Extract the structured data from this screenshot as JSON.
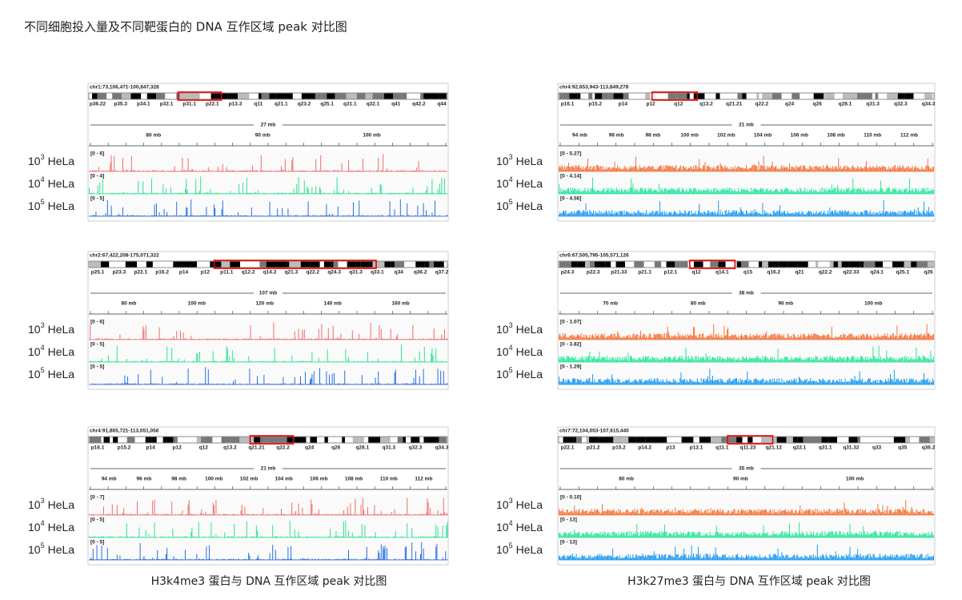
{
  "title": "不同细胞投入量及不同靶蛋白的 DNA 互作区域 peak 对比图",
  "track_labels": [
    {
      "base": "10",
      "exp": "3",
      "cell": "HeLa"
    },
    {
      "base": "10",
      "exp": "4",
      "cell": "HeLa"
    },
    {
      "base": "10",
      "exp": "5",
      "cell": "HeLa"
    }
  ],
  "columns": [
    {
      "caption": "H3k4me3 蛋白与 DNA 互作区域 peak 对比图",
      "panels": [
        {
          "locus": "chr1:73,106,471-100,847,328",
          "bands": [
            "p36.22",
            "p35.3",
            "p34.1",
            "p32.1",
            "p31.1",
            "p22.1",
            "p13.3",
            "q11",
            "q21.1",
            "q23.2",
            "q25.1",
            "q31.1",
            "q32.1",
            "q41",
            "q42.2",
            "q44"
          ],
          "scale": "27 mb",
          "ticks": [
            "80 mb",
            "90 mb",
            "100 mb"
          ],
          "ranges": [
            "[0 - 6]",
            "[0 - 4]",
            "[0 - 5]"
          ]
        },
        {
          "locus": "chr2:67,422,208-175,071,322",
          "bands": [
            "p25.1",
            "p23.3",
            "p22.1",
            "p16.2",
            "p14",
            "p12",
            "p11.1",
            "q12.2",
            "q14.2",
            "q21.3",
            "q22.2",
            "q24.3",
            "q31.3",
            "q33.1",
            "q34",
            "q36.2",
            "q37.2"
          ],
          "scale": "107 mb",
          "ticks": [
            "80 mb",
            "100 mb",
            "120 mb",
            "140 mb",
            "160 mb"
          ],
          "ranges": [
            "[0 - 6]",
            "[0 - 5]",
            "[0 - 5]"
          ]
        },
        {
          "locus": "chr4:91,865,721-113,051,056",
          "bands": [
            "p16.1",
            "p15.2",
            "p14",
            "p12",
            "q12",
            "q13.2",
            "q21.21",
            "q22.2",
            "q24",
            "q26",
            "q28.1",
            "q31.3",
            "q32.3",
            "q34.3"
          ],
          "scale": "21 mb",
          "ticks": [
            "94 mb",
            "96 mb",
            "98 mb",
            "100 mb",
            "102 mb",
            "104 mb",
            "106 mb",
            "108 mb",
            "110 mb",
            "112 mb"
          ],
          "ranges": [
            "[0 - 7]",
            "[0 - 5]",
            "[0 - 5]"
          ]
        }
      ]
    },
    {
      "caption": "H3k27me3 蛋白与 DNA 互作区域 peak 对比图",
      "panels": [
        {
          "locus": "chr4:92,653,943-113,849,278",
          "bands": [
            "p16.1",
            "p15.2",
            "p14",
            "p12",
            "q12",
            "q13.2",
            "q21.21",
            "q22.2",
            "q24",
            "q26",
            "q28.1",
            "q31.3",
            "q32.3",
            "q34.3"
          ],
          "scale": "21 mb",
          "ticks": [
            "94 mb",
            "96 mb",
            "98 mb",
            "100 mb",
            "102 mb",
            "104 mb",
            "106 mb",
            "108 mb",
            "110 mb",
            "112 mb"
          ],
          "ranges": [
            "[0 - 5.27]",
            "[0 - 4.14]",
            "[0 - 4.56]"
          ]
        },
        {
          "locus": "chr6:67,505,795-105,571,126",
          "bands": [
            "p24.3",
            "p22.3",
            "p21.33",
            "p21.1",
            "p12.1",
            "q12",
            "q14.1",
            "q15",
            "q16.2",
            "q21",
            "q22.2",
            "q22.33",
            "q24.1",
            "q25.1",
            "q26"
          ],
          "scale": "38 mb",
          "ticks": [
            "70 mb",
            "80 mb",
            "90 mb",
            "100 mb"
          ],
          "ranges": [
            "[0 - 1.07]",
            "[0 - 3.82]",
            "[0 - 1.29]"
          ]
        },
        {
          "locus": "chr7:72,104,053-107,615,440",
          "bands": [
            "p22.1",
            "p21.2",
            "p15.2",
            "p14.2",
            "p13",
            "p12.1",
            "q11.1",
            "q11.23",
            "q21.12",
            "q22.1",
            "q31.1",
            "q31.32",
            "q33",
            "q35",
            "q36.2"
          ],
          "scale": "35 mb",
          "ticks": [
            "80 mb",
            "90 mb",
            "100 mb"
          ],
          "ranges": [
            "[0 - 0.10]",
            "[0 - 13]",
            "[0 - 13]"
          ]
        }
      ]
    }
  ]
}
